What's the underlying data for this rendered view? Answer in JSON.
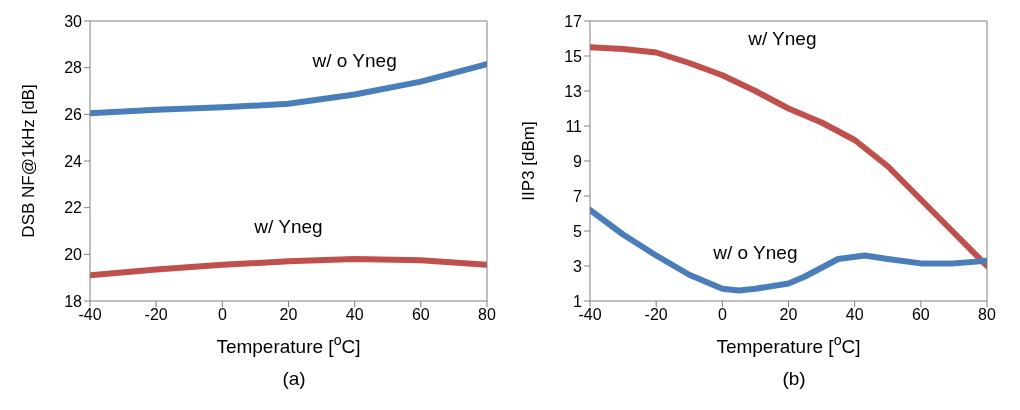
{
  "chart_data": [
    {
      "type": "line",
      "xlabel": "Temperature [$^{o}$C]",
      "ylabel": "DSB NF@1kHz [dB]",
      "annotations": [
        "(a)"
      ],
      "x": [
        -40,
        -20,
        0,
        20,
        40,
        60,
        80
      ],
      "xlim": [
        -40,
        80
      ],
      "xticks": [
        -40,
        -20,
        0,
        20,
        40,
        60,
        80
      ],
      "ylim": [
        18,
        30
      ],
      "yticks": [
        18,
        20,
        22,
        24,
        26,
        28,
        30
      ],
      "grid": false,
      "legend": false,
      "marker": "none",
      "series": [
        {
          "name": "w/ o Yneg",
          "color": "#4a7ebb",
          "values": [
            26.05,
            26.2,
            26.3,
            26.45,
            26.85,
            27.4,
            28.15
          ]
        },
        {
          "name": "w/ Yneg",
          "color": "#c0504d",
          "values": [
            19.1,
            19.35,
            19.55,
            19.7,
            19.8,
            19.75,
            19.55
          ]
        }
      ]
    },
    {
      "type": "line",
      "xlabel": "Temperature [$^{o}$C]",
      "ylabel": "IIP3 [dBm]",
      "annotations": [
        "(b)"
      ],
      "xlim": [
        -40,
        80
      ],
      "xticks": [
        -40,
        -20,
        0,
        20,
        40,
        60,
        80
      ],
      "ylim": [
        1,
        17
      ],
      "yticks": [
        1,
        3,
        5,
        7,
        9,
        11,
        13,
        15,
        17
      ],
      "grid": false,
      "legend": false,
      "marker": "none",
      "series": [
        {
          "name": "w/ Yneg",
          "color": "#c0504d",
          "x": [
            -40,
            -30,
            -20,
            -10,
            0,
            10,
            20,
            30,
            40,
            50,
            60,
            70,
            80
          ],
          "values": [
            15.5,
            15.4,
            15.2,
            14.6,
            13.9,
            13.0,
            12.0,
            11.2,
            10.2,
            8.7,
            6.8,
            4.9,
            3.0
          ]
        },
        {
          "name": "w/ o Yneg",
          "color": "#4a7ebb",
          "x": [
            -40,
            -30,
            -20,
            -10,
            0,
            5,
            10,
            20,
            25,
            35,
            43,
            50,
            60,
            70,
            80
          ],
          "values": [
            6.2,
            4.8,
            3.6,
            2.5,
            1.7,
            1.6,
            1.7,
            2.0,
            2.4,
            3.4,
            3.6,
            3.4,
            3.15,
            3.15,
            3.3
          ]
        }
      ]
    }
  ]
}
